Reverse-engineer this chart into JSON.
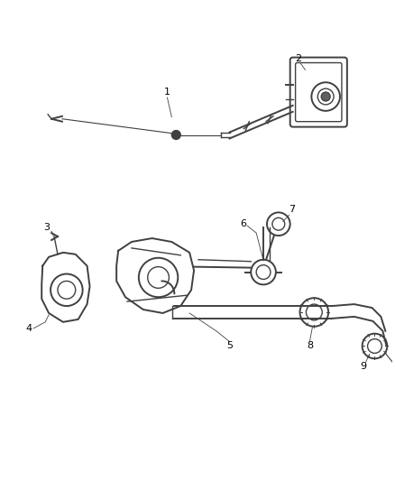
{
  "background_color": "#ffffff",
  "line_color": "#404040",
  "label_color": "#000000",
  "fig_width": 4.38,
  "fig_height": 5.33,
  "dpi": 100
}
